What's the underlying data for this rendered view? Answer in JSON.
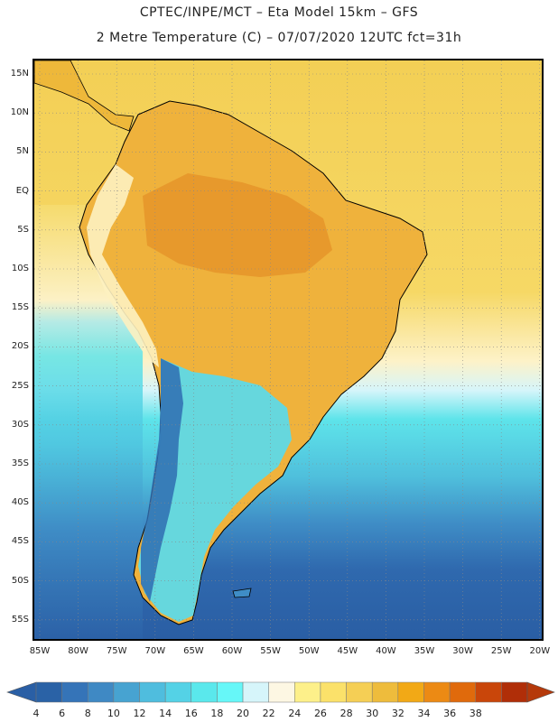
{
  "header": {
    "line1": "CPTEC/INPE/MCT –  Eta Model 15km – GFS",
    "line2": "2 Metre Temperature (C) – 07/07/2020 12UTC fct=31h"
  },
  "lat_labels": [
    "15N",
    "10N",
    "5N",
    "EQ",
    "5S",
    "10S",
    "15S",
    "20S",
    "25S",
    "30S",
    "35S",
    "40S",
    "45S",
    "50S",
    "55S"
  ],
  "lon_labels": [
    "85W",
    "80W",
    "75W",
    "70W",
    "65W",
    "60W",
    "55W",
    "50W",
    "45W",
    "40W",
    "35W",
    "30W",
    "25W",
    "20W"
  ],
  "colorbar": {
    "levels": [
      "4",
      "6",
      "8",
      "10",
      "12",
      "14",
      "16",
      "18",
      "20",
      "22",
      "24",
      "26",
      "28",
      "30",
      "32",
      "34",
      "36",
      "38"
    ],
    "colors": [
      "#2a62a6",
      "#3574b8",
      "#3f89c4",
      "#47a3d1",
      "#4fbdde",
      "#54d2e6",
      "#5ae8ec",
      "#66f7f8",
      "#d6f5fa",
      "#fdf7e3",
      "#fdf08a",
      "#fbe16a",
      "#f5cf55",
      "#eebc3c",
      "#f2a916",
      "#ec8a14",
      "#e06a0c",
      "#c9460a",
      "#b02e08"
    ],
    "low_end_color": "#2a5fa5",
    "high_end_color": "#b5390a"
  }
}
